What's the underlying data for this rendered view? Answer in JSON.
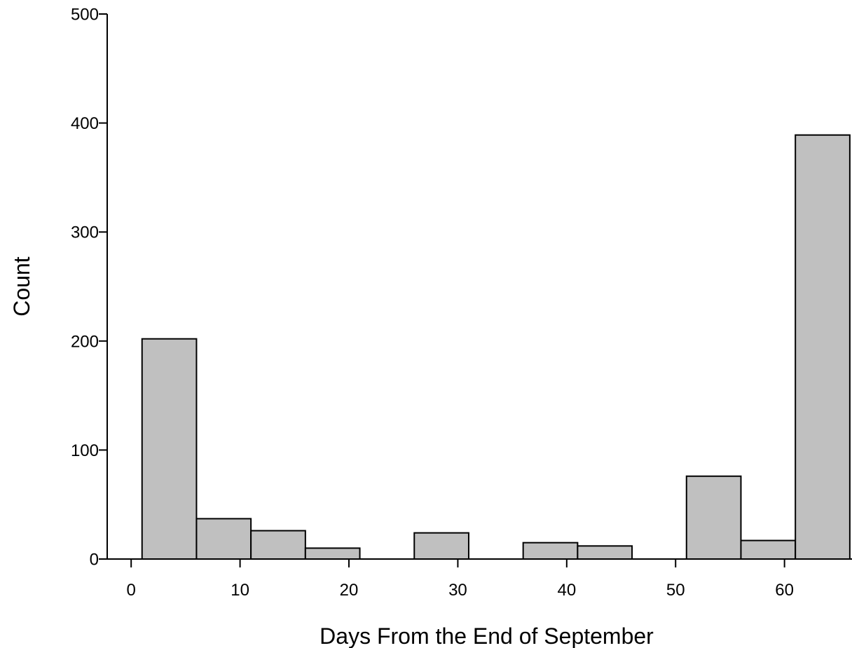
{
  "chart_data": {
    "type": "bar",
    "title": "",
    "xlabel": "Days From the End of September",
    "ylabel": "Count",
    "xlim": [
      -2.2,
      66.2
    ],
    "ylim": [
      0,
      500
    ],
    "x_ticks": [
      0,
      10,
      20,
      30,
      40,
      50,
      60
    ],
    "y_ticks": [
      0,
      100,
      200,
      300,
      400,
      500
    ],
    "grid": false,
    "legend": "none",
    "bar_color": "#c0c0c0",
    "edge_color": "#000000",
    "bins": [
      {
        "start": 1,
        "end": 6,
        "value": 202
      },
      {
        "start": 6,
        "end": 11,
        "value": 37
      },
      {
        "start": 11,
        "end": 16,
        "value": 26
      },
      {
        "start": 16,
        "end": 21,
        "value": 10
      },
      {
        "start": 21,
        "end": 26,
        "value": 0
      },
      {
        "start": 26,
        "end": 31,
        "value": 24
      },
      {
        "start": 31,
        "end": 36,
        "value": 0
      },
      {
        "start": 36,
        "end": 41,
        "value": 15
      },
      {
        "start": 41,
        "end": 46,
        "value": 12
      },
      {
        "start": 46,
        "end": 51,
        "value": 0
      },
      {
        "start": 51,
        "end": 56,
        "value": 76
      },
      {
        "start": 56,
        "end": 61,
        "value": 17
      },
      {
        "start": 61,
        "end": 66,
        "value": 389
      }
    ]
  }
}
